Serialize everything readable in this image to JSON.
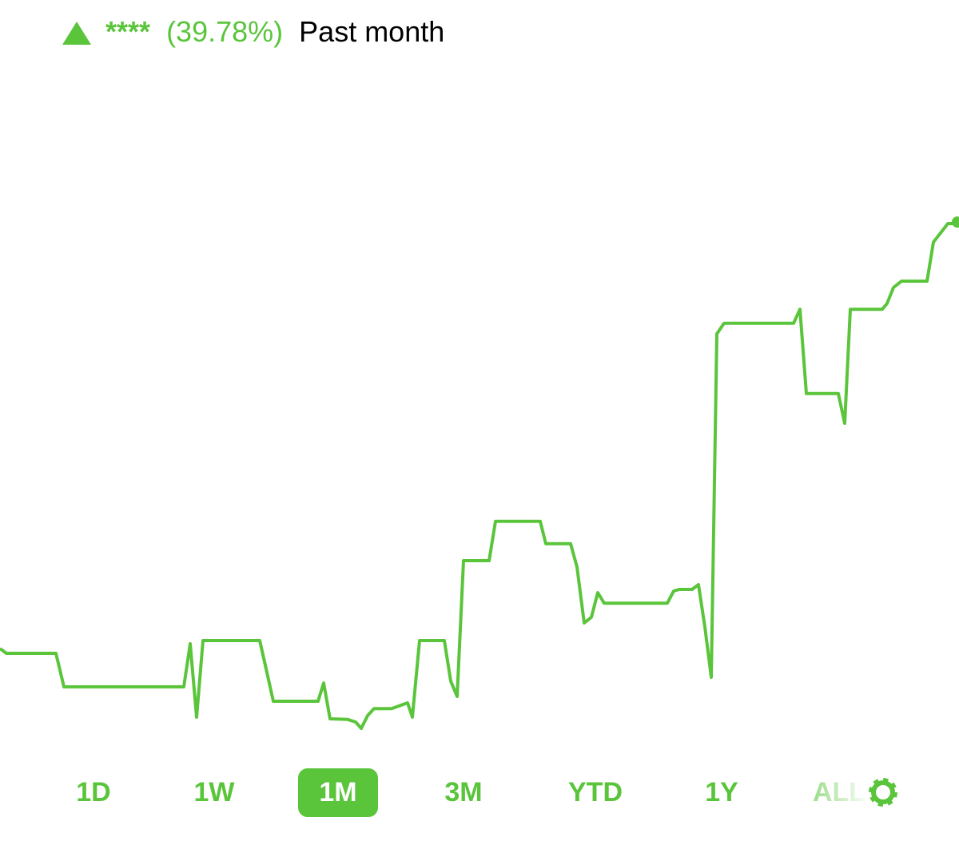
{
  "header": {
    "change_amount": "****",
    "change_percent": "(39.78%)",
    "period": "Past month"
  },
  "chart_data": {
    "type": "line",
    "x": [
      0,
      8,
      70,
      80,
      230,
      238,
      246,
      254,
      325,
      334,
      342,
      398,
      405,
      413,
      435,
      445,
      452,
      460,
      468,
      490,
      510,
      516,
      525,
      556,
      564,
      572,
      580,
      612,
      620,
      676,
      683,
      714,
      722,
      731,
      740,
      748,
      756,
      835,
      843,
      850,
      866,
      874,
      882,
      890,
      897,
      906,
      993,
      1001,
      1009,
      1049,
      1057,
      1064,
      1104,
      1110,
      1118,
      1128,
      1160,
      1168,
      1186,
      1196,
      1198
    ],
    "series": [
      {
        "color": "#5ac53b",
        "values": [
          18.5,
          17.75,
          17.75,
          12.5,
          12.5,
          19.25,
          7.75,
          19.75,
          19.75,
          14.75,
          10.25,
          10.25,
          13.1,
          7.5,
          7.4,
          7,
          6,
          8,
          9.1,
          9.1,
          10,
          7.75,
          19.75,
          19.75,
          13.4,
          11,
          32.25,
          32.25,
          38.4,
          38.4,
          34.9,
          34.9,
          31.25,
          22.5,
          23.4,
          27.25,
          25.6,
          25.6,
          27.5,
          27.75,
          27.75,
          28.5,
          21.9,
          14,
          67.75,
          69.4,
          69.4,
          71.6,
          58.4,
          58.4,
          53.75,
          71.6,
          71.6,
          72.5,
          75,
          76,
          76,
          82.1,
          85,
          85,
          85.25
        ]
      }
    ],
    "xlim": [
      0,
      1200
    ],
    "ylim": [
      0,
      100
    ]
  },
  "range_tabs": {
    "labels": [
      "1D",
      "1W",
      "1M",
      "3M",
      "YTD",
      "1Y",
      "ALL"
    ],
    "selected": 2
  }
}
